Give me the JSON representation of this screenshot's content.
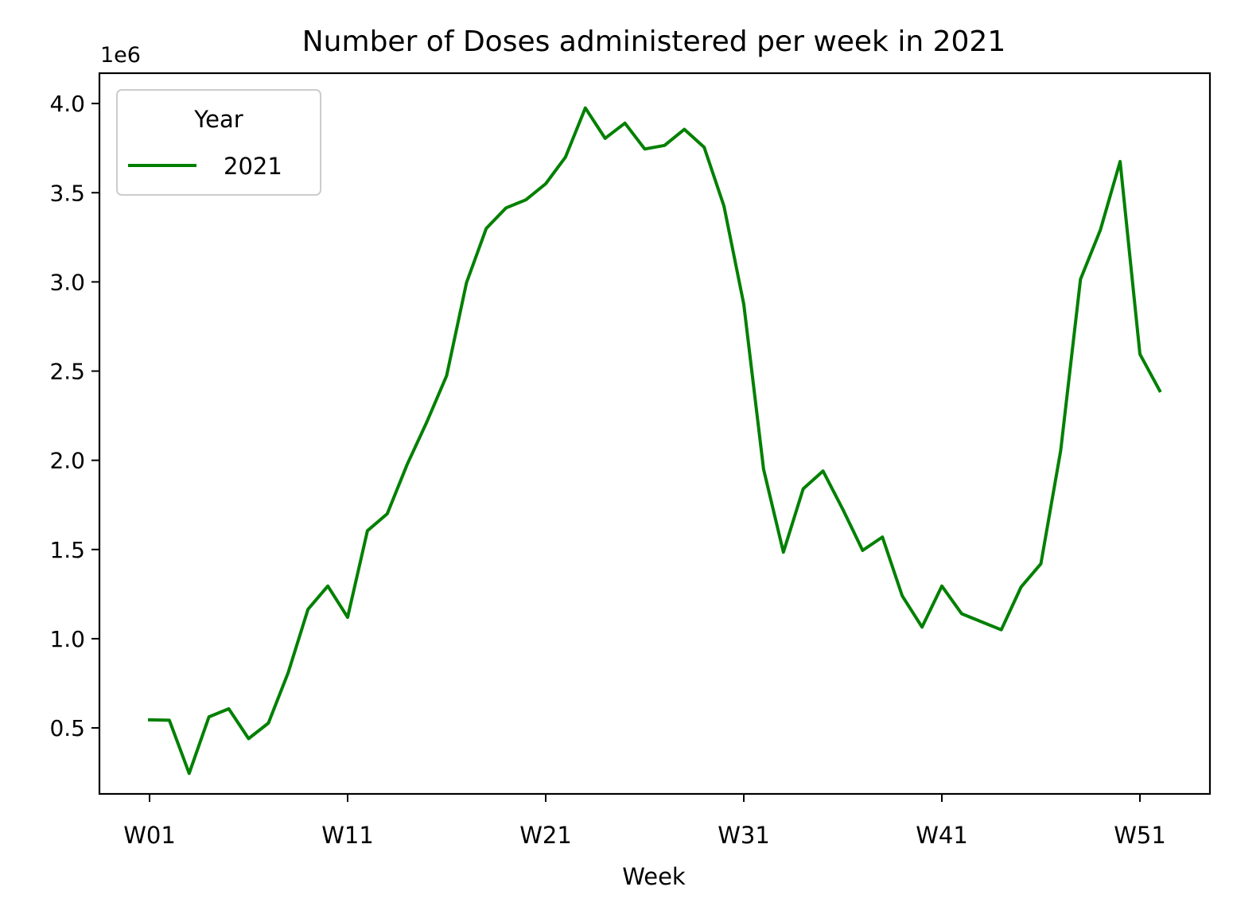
{
  "chart_data": {
    "type": "line",
    "title": "Number of Doses administered per week in 2021",
    "xlabel": "Week",
    "ylabel": "",
    "offset_label": "1e6",
    "ylim": [
      0.13,
      4.17
    ],
    "yticks": [
      0.5,
      1.0,
      1.5,
      2.0,
      2.5,
      3.0,
      3.5,
      4.0
    ],
    "ytick_labels": [
      "0.5",
      "1.0",
      "1.5",
      "2.0",
      "2.5",
      "3.0",
      "3.5",
      "4.0"
    ],
    "xticks": [
      "W01",
      "W11",
      "W21",
      "W31",
      "W41",
      "W51"
    ],
    "grid": false,
    "legend": {
      "title": "Year",
      "placement": "top-left"
    },
    "x": [
      "W01",
      "W02",
      "W03",
      "W04",
      "W05",
      "W06",
      "W07",
      "W08",
      "W09",
      "W10",
      "W11",
      "W12",
      "W13",
      "W14",
      "W15",
      "W16",
      "W17",
      "W18",
      "W19",
      "W20",
      "W21",
      "W22",
      "W23",
      "W24",
      "W25",
      "W26",
      "W27",
      "W28",
      "W29",
      "W30",
      "W31",
      "W32",
      "W33",
      "W34",
      "W35",
      "W36",
      "W37",
      "W38",
      "W39",
      "W40",
      "W41",
      "W42",
      "W43",
      "W44",
      "W45",
      "W46",
      "W47",
      "W48",
      "W49",
      "W50",
      "W51",
      "W52"
    ],
    "series": [
      {
        "name": "2021",
        "color": "#008000",
        "values": [
          0.545,
          0.543,
          0.245,
          0.562,
          0.607,
          0.44,
          0.527,
          0.81,
          1.165,
          1.295,
          1.12,
          1.605,
          1.7,
          1.975,
          2.215,
          2.475,
          2.995,
          3.3,
          3.415,
          3.46,
          3.55,
          3.7,
          3.975,
          3.805,
          3.89,
          3.745,
          3.765,
          3.855,
          3.755,
          3.425,
          2.875,
          1.95,
          1.485,
          1.84,
          1.94,
          1.725,
          1.495,
          1.57,
          1.24,
          1.065,
          1.295,
          1.14,
          1.095,
          1.05,
          1.29,
          1.42,
          2.055,
          3.015,
          3.29,
          3.675,
          2.595,
          2.39
        ]
      }
    ]
  }
}
